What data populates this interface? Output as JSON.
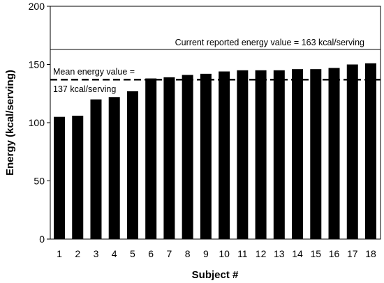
{
  "chart_data": {
    "type": "bar",
    "xlabel": "Subject #",
    "ylabel": "Energy (kcal/serving)",
    "ylim": [
      0,
      200
    ],
    "yticks": [
      0,
      50,
      100,
      150,
      200
    ],
    "categories": [
      "1",
      "2",
      "3",
      "4",
      "5",
      "6",
      "7",
      "8",
      "9",
      "10",
      "11",
      "12",
      "13",
      "14",
      "15",
      "16",
      "17",
      "18"
    ],
    "values": [
      105,
      106,
      120,
      122,
      127,
      138,
      139,
      141,
      142,
      144,
      145,
      145,
      145,
      146,
      146,
      147,
      150,
      151
    ],
    "grid": false,
    "bar_color": "#000000",
    "reference_lines": [
      {
        "value": 163,
        "style": "solid",
        "label_lines": [
          "Current reported energy value = 163 kcal/serving"
        ]
      },
      {
        "value": 137,
        "style": "dashed",
        "label_lines": [
          "Mean energy value =",
          "137 kcal/serving"
        ]
      }
    ]
  }
}
